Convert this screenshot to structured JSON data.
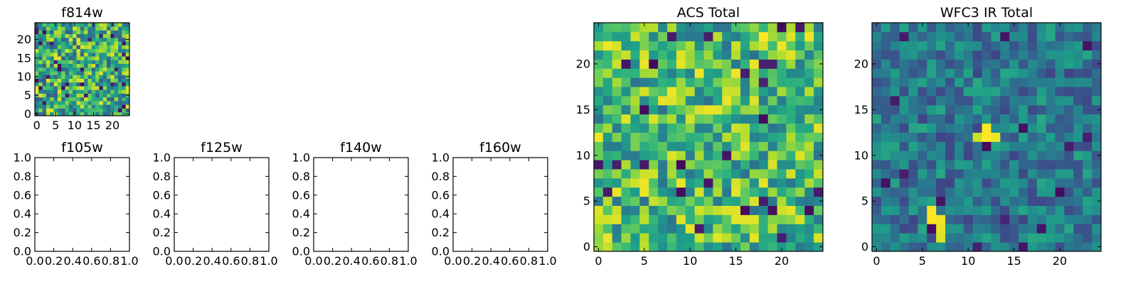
{
  "chart_data": [
    {
      "type": "heatmap",
      "title": "f814w",
      "colormap": "viridis",
      "grid_size": 25,
      "seed": 814,
      "mean": 0.62,
      "spread": 0.34,
      "xlim": [
        -0.5,
        24.5
      ],
      "ylim": [
        -0.5,
        24.5
      ],
      "xticks": [
        0,
        5,
        10,
        15,
        20
      ],
      "xtick_labels": [
        "0",
        "5",
        "10",
        "15",
        "20"
      ],
      "yticks": [
        0,
        5,
        10,
        15,
        20
      ],
      "ytick_labels": [
        "0",
        "5",
        "10",
        "15",
        "20"
      ],
      "hot_spots": [],
      "note_values": "per-pixel intensities not printed; normalized 0-1 colormap values"
    },
    {
      "type": "heatmap",
      "title": "f105w",
      "empty": true,
      "xlim": [
        0,
        1
      ],
      "ylim": [
        0,
        1
      ],
      "xticks": [
        0,
        0.2,
        0.4,
        0.6,
        0.8,
        1.0
      ],
      "xtick_labels": [
        "0.0",
        "0.2",
        "0.4",
        "0.6",
        "0.8",
        "1.0"
      ],
      "yticks": [
        0,
        0.2,
        0.4,
        0.6,
        0.8,
        1.0
      ],
      "ytick_labels": [
        "0.0",
        "0.2",
        "0.4",
        "0.6",
        "0.8",
        "1.0"
      ]
    },
    {
      "type": "heatmap",
      "title": "f125w",
      "empty": true,
      "xlim": [
        0,
        1
      ],
      "ylim": [
        0,
        1
      ],
      "xticks": [
        0,
        0.2,
        0.4,
        0.6,
        0.8,
        1.0
      ],
      "xtick_labels": [
        "0.0",
        "0.2",
        "0.4",
        "0.6",
        "0.8",
        "1.0"
      ],
      "yticks": [
        0,
        0.2,
        0.4,
        0.6,
        0.8,
        1.0
      ],
      "ytick_labels": [
        "0.0",
        "0.2",
        "0.4",
        "0.6",
        "0.8",
        "1.0"
      ]
    },
    {
      "type": "heatmap",
      "title": "f140w",
      "empty": true,
      "xlim": [
        0,
        1
      ],
      "ylim": [
        0,
        1
      ],
      "xticks": [
        0,
        0.2,
        0.4,
        0.6,
        0.8,
        1.0
      ],
      "xtick_labels": [
        "0.0",
        "0.2",
        "0.4",
        "0.6",
        "0.8",
        "1.0"
      ],
      "yticks": [
        0,
        0.2,
        0.4,
        0.6,
        0.8,
        1.0
      ],
      "ytick_labels": [
        "0.0",
        "0.2",
        "0.4",
        "0.6",
        "0.8",
        "1.0"
      ]
    },
    {
      "type": "heatmap",
      "title": "f160w",
      "empty": true,
      "xlim": [
        0,
        1
      ],
      "ylim": [
        0,
        1
      ],
      "xticks": [
        0,
        0.2,
        0.4,
        0.6,
        0.8,
        1.0
      ],
      "xtick_labels": [
        "0.0",
        "0.2",
        "0.4",
        "0.6",
        "0.8",
        "1.0"
      ],
      "yticks": [
        0,
        0.2,
        0.4,
        0.6,
        0.8,
        1.0
      ],
      "ytick_labels": [
        "0.0",
        "0.2",
        "0.4",
        "0.6",
        "0.8",
        "1.0"
      ]
    },
    {
      "type": "heatmap",
      "title": "ACS Total",
      "colormap": "viridis",
      "grid_size": 25,
      "seed": 2021,
      "mean": 0.68,
      "spread": 0.3,
      "xlim": [
        -0.5,
        24.5
      ],
      "ylim": [
        -0.5,
        24.5
      ],
      "xticks": [
        0,
        5,
        10,
        15,
        20
      ],
      "xtick_labels": [
        "0",
        "5",
        "10",
        "15",
        "20"
      ],
      "yticks": [
        0,
        5,
        10,
        15,
        20
      ],
      "ytick_labels": [
        "0",
        "5",
        "10",
        "15",
        "20"
      ],
      "hot_spots": [
        [
          18,
          23,
          1.0
        ],
        [
          8,
          10,
          0.95
        ],
        [
          14,
          4,
          0.95
        ],
        [
          15,
          4,
          0.95
        ]
      ]
    },
    {
      "type": "heatmap",
      "title": "WFC3 IR Total",
      "colormap": "viridis",
      "grid_size": 25,
      "seed": 3,
      "mean": 0.4,
      "spread": 0.2,
      "xlim": [
        -0.5,
        24.5
      ],
      "ylim": [
        -0.5,
        24.5
      ],
      "xticks": [
        0,
        5,
        10,
        15,
        20
      ],
      "xtick_labels": [
        "0",
        "5",
        "10",
        "15",
        "20"
      ],
      "yticks": [
        0,
        5,
        10,
        15,
        20
      ],
      "ytick_labels": [
        "0",
        "5",
        "10",
        "15",
        "20"
      ],
      "hot_spots": [
        [
          12,
          13,
          1.0
        ],
        [
          12,
          12,
          1.0
        ],
        [
          13,
          12,
          0.97
        ],
        [
          11,
          12,
          0.92
        ],
        [
          6,
          4,
          1.0
        ],
        [
          6,
          3,
          1.0
        ],
        [
          7,
          3,
          0.98
        ],
        [
          7,
          2,
          0.96
        ],
        [
          7,
          1,
          0.95
        ]
      ]
    }
  ]
}
